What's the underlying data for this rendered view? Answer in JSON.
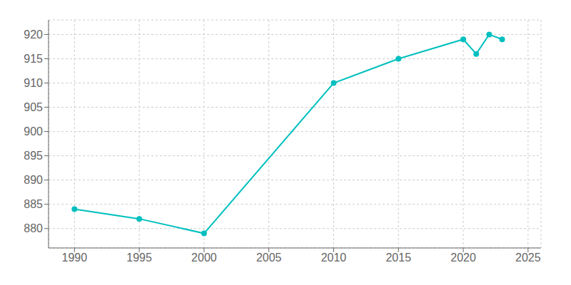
{
  "chart_data": {
    "type": "line",
    "x": [
      1990,
      1995,
      2000,
      2010,
      2015,
      2020,
      2021,
      2022,
      2023
    ],
    "values": [
      884,
      882,
      879,
      910,
      915,
      919,
      916,
      920,
      919
    ],
    "color": "#00BFBF",
    "marker": "circle",
    "xlim": [
      1988,
      2026
    ],
    "ylim": [
      876,
      923
    ],
    "xticks": [
      1990,
      1995,
      2000,
      2005,
      2010,
      2015,
      2020,
      2025
    ],
    "yticks": [
      880,
      885,
      890,
      895,
      900,
      905,
      910,
      915,
      920
    ],
    "grid": true
  }
}
